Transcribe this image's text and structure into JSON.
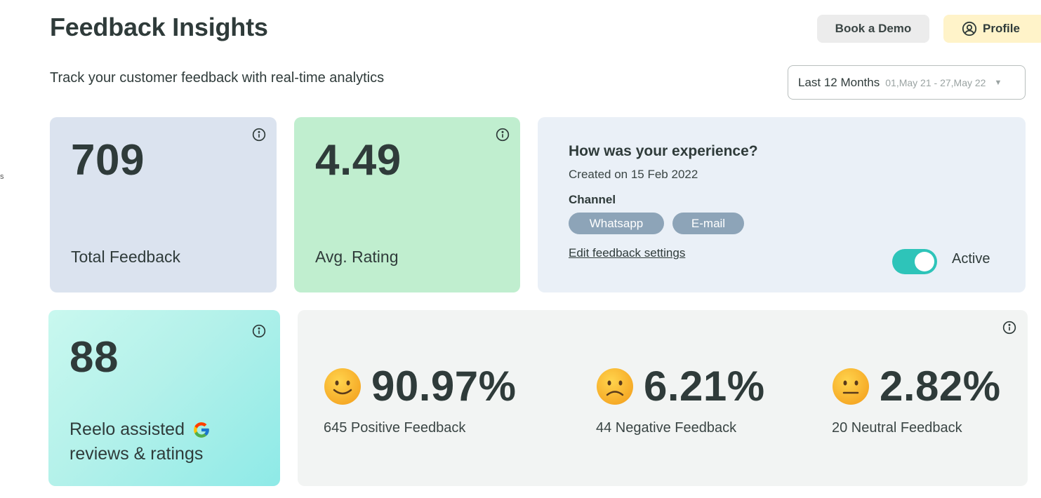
{
  "header": {
    "title": "Feedback Insights",
    "subtitle": "Track your customer feedback with real-time analytics",
    "edge_fragment": "s",
    "demo_button": "Book a Demo",
    "profile_button": "Profile"
  },
  "date_filter": {
    "label": "Last 12 Months",
    "range": "01,May 21 - 27,May 22"
  },
  "stats": {
    "total": {
      "value": "709",
      "label": "Total Feedback",
      "color": "#dbe3ef"
    },
    "rating": {
      "value": "4.49",
      "label": "Avg. Rating",
      "color": "#c0eecf"
    },
    "reelo": {
      "value": "88",
      "label_line1": "Reelo assisted",
      "label_line2": "reviews & ratings"
    }
  },
  "survey": {
    "title": "How was your experience?",
    "created": "Created on 15 Feb 2022",
    "channel_label": "Channel",
    "channels": [
      "Whatsapp",
      "E-mail"
    ],
    "edit_link": "Edit feedback settings",
    "status_label": "Active",
    "active": true
  },
  "sentiment": [
    {
      "percent": "90.97%",
      "description": "645 Positive Feedback",
      "icon": "smiling-face-icon"
    },
    {
      "percent": "6.21%",
      "description": "44 Negative Feedback",
      "icon": "frowning-face-icon"
    },
    {
      "percent": "2.82%",
      "description": "20 Neutral Feedback",
      "icon": "neutral-face-icon"
    }
  ],
  "colors": {
    "accent_toggle": "#2ec4b9",
    "chip": "#8da4b8",
    "profile_bg": "#fff3c9",
    "text": "#2f3b3a"
  }
}
